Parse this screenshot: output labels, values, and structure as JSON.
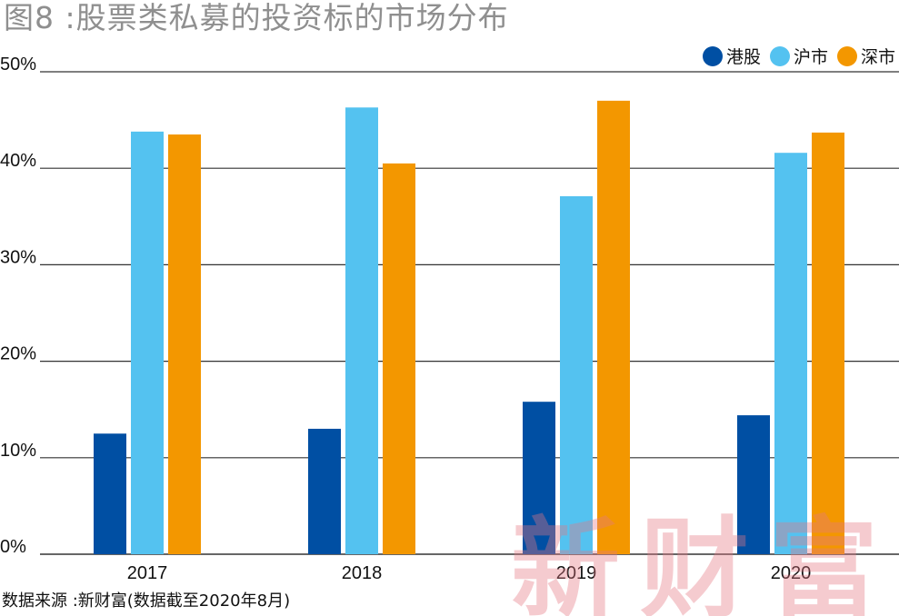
{
  "chart_data": {
    "type": "bar",
    "title": "图8 :股票类私募的投资标的市场分布",
    "categories": [
      "2017",
      "2018",
      "2019",
      "2020"
    ],
    "series": [
      {
        "name": "港股",
        "color": "#004fa3",
        "values": [
          12.5,
          13.0,
          15.8,
          14.4
        ]
      },
      {
        "name": "沪市",
        "color": "#54c2f0",
        "values": [
          43.8,
          46.3,
          37.1,
          41.6
        ]
      },
      {
        "name": "深市",
        "color": "#f39700",
        "values": [
          43.5,
          40.5,
          47.0,
          43.7
        ]
      }
    ],
    "ylim": [
      0,
      50
    ],
    "yticks": [
      0,
      10,
      20,
      30,
      40,
      50
    ],
    "ytick_labels": [
      "0%",
      "10%",
      "20%",
      "30%",
      "40%",
      "50%"
    ],
    "xlabel": "",
    "ylabel": "",
    "grid": true,
    "legend_position": "top-right",
    "source": "数据来源 :新财富(数据截至2020年8月)",
    "watermark": "新财富"
  }
}
